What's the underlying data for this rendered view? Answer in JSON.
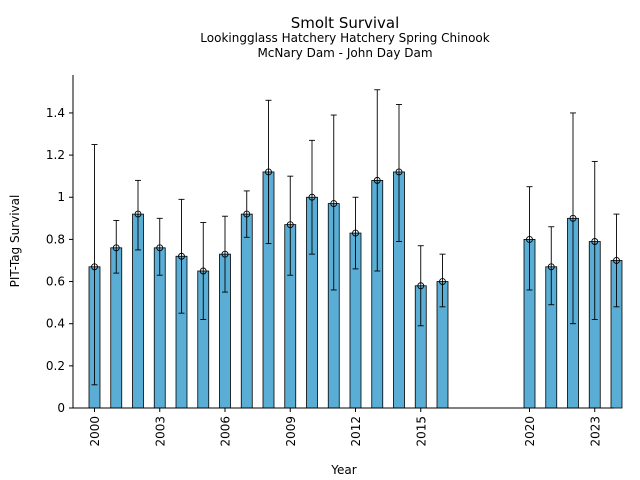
{
  "chart_data": {
    "type": "bar",
    "title": "Smolt Survival",
    "subtitle_lines": [
      "Lookingglass Hatchery Hatchery Spring Chinook",
      "McNary Dam - John Day Dam"
    ],
    "xlabel": "Year",
    "ylabel": "PIT-Tag Survival",
    "xlim": [
      1999.5,
      2024
    ],
    "ylim": [
      0,
      1.58
    ],
    "y_ticks": [
      0,
      0.2,
      0.4,
      0.6,
      0.8,
      1.0,
      1.2,
      1.4
    ],
    "y_tick_labels": [
      "0",
      "0.2",
      "0.4",
      "0.6",
      "0.8",
      "1",
      "1.2",
      "1.4"
    ],
    "x_ticks": [
      2000,
      2003,
      2006,
      2009,
      2012,
      2015,
      2020,
      2023
    ],
    "x_tick_labels": [
      "2000",
      "2003",
      "2006",
      "2009",
      "2012",
      "2015",
      "2020",
      "2023"
    ],
    "bar_color": "#5aaed6",
    "grid": false,
    "bars": [
      {
        "x": 2000,
        "value": 0.67,
        "lower": 0.11,
        "upper": 1.25
      },
      {
        "x": 2001,
        "value": 0.76,
        "lower": 0.64,
        "upper": 0.89
      },
      {
        "x": 2002,
        "value": 0.92,
        "lower": 0.75,
        "upper": 1.08
      },
      {
        "x": 2003,
        "value": 0.76,
        "lower": 0.63,
        "upper": 0.9
      },
      {
        "x": 2004,
        "value": 0.72,
        "lower": 0.45,
        "upper": 0.99
      },
      {
        "x": 2005,
        "value": 0.65,
        "lower": 0.42,
        "upper": 0.88
      },
      {
        "x": 2006,
        "value": 0.73,
        "lower": 0.55,
        "upper": 0.91
      },
      {
        "x": 2007,
        "value": 0.92,
        "lower": 0.81,
        "upper": 1.03
      },
      {
        "x": 2008,
        "value": 1.12,
        "lower": 0.78,
        "upper": 1.46
      },
      {
        "x": 2009,
        "value": 0.87,
        "lower": 0.63,
        "upper": 1.1
      },
      {
        "x": 2010,
        "value": 1.0,
        "lower": 0.73,
        "upper": 1.27
      },
      {
        "x": 2011,
        "value": 0.97,
        "lower": 0.56,
        "upper": 1.39
      },
      {
        "x": 2012,
        "value": 0.83,
        "lower": 0.66,
        "upper": 1.0
      },
      {
        "x": 2013,
        "value": 1.08,
        "lower": 0.65,
        "upper": 1.51
      },
      {
        "x": 2014,
        "value": 1.12,
        "lower": 0.79,
        "upper": 1.44
      },
      {
        "x": 2015,
        "value": 0.58,
        "lower": 0.39,
        "upper": 0.77
      },
      {
        "x": 2016,
        "value": 0.6,
        "lower": 0.48,
        "upper": 0.73
      },
      {
        "x": 2020,
        "value": 0.8,
        "lower": 0.56,
        "upper": 1.05
      },
      {
        "x": 2021,
        "value": 0.67,
        "lower": 0.49,
        "upper": 0.86
      },
      {
        "x": 2022,
        "value": 0.9,
        "lower": 0.4,
        "upper": 1.4
      },
      {
        "x": 2023,
        "value": 0.79,
        "lower": 0.42,
        "upper": 1.17
      },
      {
        "x": 2024,
        "value": 0.7,
        "lower": 0.48,
        "upper": 0.92
      }
    ]
  }
}
